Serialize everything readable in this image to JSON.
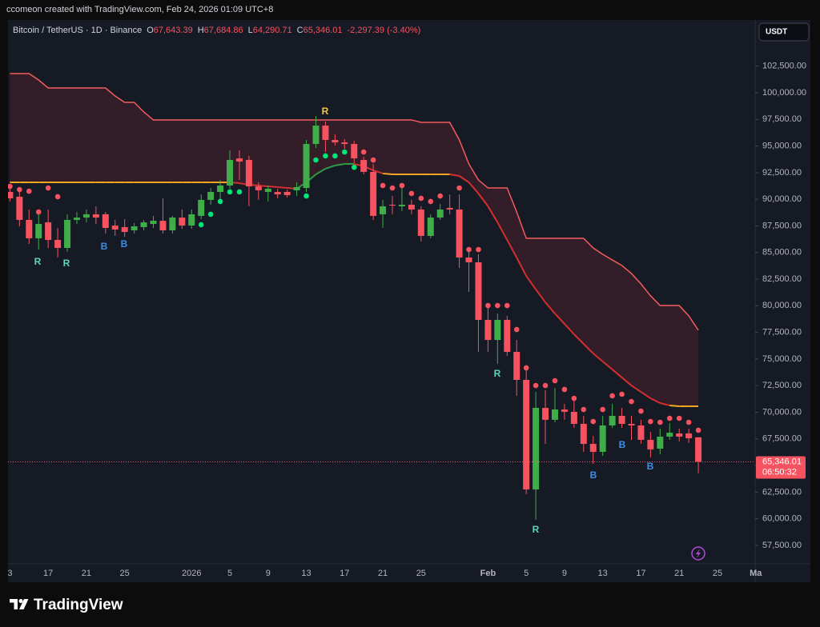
{
  "header": {
    "credit": "ccomeon created with TradingView.com, Feb 24, 2026 01:09 UTC+8",
    "symbol": "Bitcoin / TetherUS · 1D · Binance",
    "ohlc": [
      {
        "label": "O",
        "value": "67,643.39"
      },
      {
        "label": "H",
        "value": "67,684.86"
      },
      {
        "label": "L",
        "value": "64,290.71"
      },
      {
        "label": "C",
        "value": "65,346.01"
      }
    ],
    "change": "-2,297.39 (-3.40%)",
    "currency": "USDT",
    "last_price_label": "65,346.01",
    "countdown": "06:50:32",
    "brand": "TradingView"
  },
  "chart_data": {
    "type": "candlestick",
    "up_color": "#3fae49",
    "down_color": "#f7525f",
    "categories": [
      "3",
      null,
      null,
      null,
      "17",
      null,
      null,
      null,
      "21",
      null,
      null,
      null,
      "25",
      null,
      null,
      null,
      null,
      null,
      null,
      "2026",
      null,
      null,
      null,
      "5",
      null,
      null,
      null,
      "9",
      null,
      null,
      null,
      "13",
      null,
      null,
      null,
      "17",
      null,
      null,
      null,
      "21",
      null,
      null,
      null,
      "25",
      null,
      null,
      null,
      null,
      null,
      null,
      "Feb",
      null,
      null,
      null,
      "5",
      null,
      null,
      null,
      "9",
      null,
      null,
      null,
      "13",
      null,
      null,
      null,
      "17",
      null,
      null,
      null,
      "21",
      null,
      null,
      null,
      "25",
      null,
      null,
      null,
      "Ma"
    ],
    "open": [
      90690,
      90240,
      88060,
      86330,
      87830,
      86180,
      85430,
      88060,
      88280,
      88590,
      88590,
      87530,
      87380,
      87080,
      87380,
      87680,
      87980,
      87080,
      88280,
      87530,
      88440,
      89940,
      90690,
      91290,
      93840,
      93690,
      91210,
      90690,
      90690,
      90690,
      90840,
      91060,
      95190,
      96920,
      95570,
      95340,
      95190,
      93690,
      92570,
      88590,
      89490,
      89340,
      89490,
      89040,
      86560,
      88280,
      89190,
      89040,
      84530,
      84080,
      78670,
      76790,
      78670,
      75670,
      73040,
      62750,
      70410,
      69290,
      70260,
      70040,
      68910,
      67030,
      66280,
      68760,
      69660,
      68910,
      68760,
      67410,
      66580,
      67710,
      68010,
      68010,
      67643.39,
      null,
      null,
      null,
      null,
      null,
      null
    ],
    "high": [
      91060,
      90690,
      89040,
      88590,
      89040,
      87310,
      88590,
      88810,
      89040,
      89340,
      88810,
      88060,
      88130,
      87760,
      88060,
      88440,
      90090,
      88440,
      89040,
      89040,
      90460,
      91060,
      91810,
      94590,
      94590,
      94070,
      91590,
      91290,
      90990,
      90910,
      91590,
      95570,
      97820,
      97300,
      96100,
      95640,
      95490,
      93990,
      93320,
      89940,
      90310,
      91060,
      89940,
      89340,
      88590,
      89560,
      90460,
      90460,
      85060,
      84830,
      80020,
      79270,
      79050,
      76790,
      74020,
      71910,
      72060,
      72290,
      70790,
      71160,
      69660,
      67780,
      69660,
      70790,
      70410,
      69660,
      69290,
      68160,
      68460,
      68990,
      68460,
      68460,
      67684.86,
      null,
      null,
      null,
      null,
      null,
      null
    ],
    "low": [
      89790,
      87460,
      85810,
      85280,
      85430,
      84530,
      85060,
      87680,
      87830,
      87680,
      86780,
      86560,
      86480,
      86780,
      87080,
      87310,
      86780,
      86780,
      87230,
      87230,
      88130,
      89490,
      89940,
      90990,
      91810,
      89340,
      89940,
      89790,
      90090,
      90160,
      90310,
      90690,
      94820,
      94440,
      95040,
      94740,
      93390,
      92340,
      88060,
      87310,
      88590,
      88890,
      88590,
      86030,
      86330,
      88060,
      88590,
      83550,
      81300,
      75670,
      75670,
      74540,
      75290,
      71540,
      62300,
      59900,
      67030,
      69060,
      69290,
      68530,
      66280,
      65150,
      65900,
      68530,
      68530,
      67410,
      67030,
      65750,
      66060,
      67410,
      67260,
      67110,
      64290.71,
      null,
      null,
      null,
      null,
      null,
      null
    ],
    "close": [
      90090,
      88060,
      86330,
      87680,
      86180,
      85430,
      88060,
      88280,
      88590,
      88280,
      87310,
      87160,
      86930,
      87460,
      87830,
      87980,
      87080,
      88280,
      87530,
      88590,
      89940,
      90690,
      91290,
      93690,
      93540,
      91210,
      90840,
      90990,
      90460,
      90390,
      91140,
      95190,
      96920,
      95570,
      95340,
      95190,
      93840,
      92570,
      88440,
      89340,
      89410,
      89490,
      89040,
      86560,
      88280,
      89040,
      89040,
      84530,
      84080,
      78670,
      76790,
      78670,
      75670,
      73040,
      62750,
      70410,
      69290,
      70260,
      70040,
      68910,
      67030,
      66280,
      68760,
      69660,
      68910,
      68760,
      67410,
      66510,
      67710,
      68080,
      67710,
      67560,
      65346.01,
      null,
      null,
      null,
      null,
      null,
      null
    ],
    "ylim": [
      56000,
      106500
    ],
    "yticks": [
      {
        "value": 57500,
        "label": "57,500.00"
      },
      {
        "value": 60000,
        "label": "60,000.00"
      },
      {
        "value": 62500,
        "label": "62,500.00"
      },
      {
        "value": 65000,
        "label": "65,000.00"
      },
      {
        "value": 67500,
        "label": "67,500.00"
      },
      {
        "value": 70000,
        "label": "70,000.00"
      },
      {
        "value": 72500,
        "label": "72,500.00"
      },
      {
        "value": 75000,
        "label": "75,000.00"
      },
      {
        "value": 77500,
        "label": "77,500.00"
      },
      {
        "value": 80000,
        "label": "80,000.00"
      },
      {
        "value": 82500,
        "label": "82,500.00"
      },
      {
        "value": 85000,
        "label": "85,000.00"
      },
      {
        "value": 87500,
        "label": "87,500.00"
      },
      {
        "value": 90000,
        "label": "90,000.00"
      },
      {
        "value": 92500,
        "label": "92,500.00"
      },
      {
        "value": 95000,
        "label": "95,000.00"
      },
      {
        "value": 97500,
        "label": "97,500.00"
      },
      {
        "value": 100000,
        "label": "100,000.00"
      },
      {
        "value": 102500,
        "label": "102,500.00"
      }
    ],
    "grid": false,
    "band_upper": {
      "color": "#f25c5c",
      "values": [
        101800,
        101800,
        101800,
        101200,
        100450,
        100450,
        100450,
        100450,
        100450,
        100450,
        100450,
        99700,
        99100,
        99100,
        98200,
        97450,
        97450,
        97450,
        97450,
        97450,
        97450,
        97450,
        97450,
        97450,
        97450,
        97450,
        97450,
        97450,
        97450,
        97450,
        97450,
        97450,
        97450,
        97450,
        97450,
        97450,
        97450,
        97450,
        97450,
        97450,
        97450,
        97450,
        97450,
        97220,
        97220,
        97220,
        97220,
        95570,
        93320,
        91810,
        91060,
        91060,
        91060,
        88810,
        86330,
        86330,
        86330,
        86330,
        86330,
        86330,
        86330,
        85430,
        84830,
        84300,
        83780,
        83030,
        82050,
        80930,
        80020,
        80020,
        80020,
        79050,
        77700,
        null,
        null,
        null,
        null,
        null,
        null
      ]
    },
    "midline": {
      "values": [
        91590,
        91590,
        91590,
        91590,
        91590,
        91590,
        91590,
        91590,
        91590,
        91590,
        91590,
        91590,
        91590,
        91590,
        91590,
        91590,
        91590,
        91590,
        91590,
        91590,
        91590,
        91590,
        91590,
        91590,
        91510,
        91360,
        91290,
        91210,
        91140,
        91060,
        90990,
        91590,
        92340,
        92870,
        93170,
        93320,
        93320,
        93090,
        92720,
        92420,
        92340,
        92340,
        92340,
        92340,
        92340,
        92340,
        92340,
        92190,
        91590,
        90540,
        89340,
        87830,
        86180,
        84530,
        82800,
        81530,
        80320,
        79270,
        78300,
        77320,
        76420,
        75520,
        74770,
        74020,
        73260,
        72510,
        71910,
        71310,
        70860,
        70640,
        70560,
        70560,
        70560,
        null,
        null,
        null,
        null,
        null,
        null
      ],
      "colors": [
        "#f5a623",
        "#f5a623",
        "#f5a623",
        "#f5a623",
        "#f5a623",
        "#f5a623",
        "#f5a623",
        "#f5a623",
        "#f5a623",
        "#f5a623",
        "#f5a623",
        "#f5a623",
        "#f5a623",
        "#f5a623",
        "#f5a623",
        "#f5a623",
        "#f5a623",
        "#f5a623",
        "#f5a623",
        "#f5a623",
        "#f5a623",
        "#f5a623",
        "#f5a623",
        "#f5a623",
        "#d32f2f",
        "#d32f2f",
        "#d32f2f",
        "#d32f2f",
        "#d32f2f",
        "#d32f2f",
        "#d32f2f",
        "#2e9d46",
        "#2e9d46",
        "#2e9d46",
        "#2e9d46",
        "#2e9d46",
        "#2e9d46",
        "#d32f2f",
        "#d32f2f",
        "#d32f2f",
        "#f5a623",
        "#f5a623",
        "#f5a623",
        "#f5a623",
        "#f5a623",
        "#f5a623",
        "#f5a623",
        "#d32f2f",
        "#d32f2f",
        "#d32f2f",
        "#d32f2f",
        "#d32f2f",
        "#d32f2f",
        "#d32f2f",
        "#d32f2f",
        "#d32f2f",
        "#d32f2f",
        "#d32f2f",
        "#d32f2f",
        "#d32f2f",
        "#d32f2f",
        "#d32f2f",
        "#d32f2f",
        "#d32f2f",
        "#d32f2f",
        "#d32f2f",
        "#d32f2f",
        "#d32f2f",
        "#d32f2f",
        "#d32f2f",
        "#f5a623",
        "#f5a623",
        "#f5a623",
        null,
        null,
        null,
        null,
        null,
        null
      ]
    },
    "dots_down": {
      "color": "#f7525f",
      "values": [
        91210,
        90910,
        90760,
        88810,
        91060,
        90240,
        null,
        null,
        null,
        null,
        null,
        null,
        null,
        null,
        null,
        null,
        null,
        null,
        null,
        null,
        null,
        null,
        null,
        null,
        null,
        null,
        null,
        null,
        null,
        null,
        null,
        null,
        null,
        null,
        null,
        null,
        null,
        94440,
        93690,
        91290,
        91060,
        91290,
        90540,
        90090,
        89790,
        90310,
        null,
        91060,
        85280,
        85280,
        80020,
        80020,
        80020,
        77770,
        74170,
        72510,
        72510,
        72960,
        72140,
        71310,
        70260,
        69130,
        70260,
        71540,
        71690,
        71010,
        70110,
        69130,
        69060,
        69430,
        69430,
        69060,
        68310,
        null,
        null,
        null,
        null,
        null,
        null
      ]
    },
    "dots_up": {
      "color": "#00e676",
      "values": [
        null,
        null,
        null,
        null,
        null,
        null,
        null,
        null,
        null,
        null,
        null,
        null,
        null,
        null,
        null,
        null,
        null,
        null,
        null,
        null,
        87610,
        88590,
        89790,
        90690,
        90690,
        null,
        null,
        null,
        null,
        null,
        null,
        90310,
        93690,
        94070,
        94070,
        94440,
        93000,
        null,
        null,
        null,
        null,
        null,
        null,
        null,
        null,
        null,
        null,
        null,
        null,
        null,
        null,
        null,
        null,
        null,
        null,
        null,
        null,
        null,
        null,
        null,
        null,
        null,
        null,
        null,
        null,
        null,
        null,
        null,
        null,
        null,
        null,
        null,
        null,
        null,
        null,
        null,
        null,
        null,
        null
      ]
    },
    "annotations": [
      {
        "text": "R",
        "color": "#5fd3bc"
      },
      {
        "text": "R",
        "color": "#5fd3bc"
      },
      {
        "text": "B",
        "color": "#3d8ee8"
      },
      {
        "text": "B",
        "color": "#3d8ee8"
      },
      {
        "text": "R",
        "color": "#f0c94a"
      },
      {
        "text": "R",
        "color": "#5fd3bc"
      },
      {
        "text": "R",
        "color": "#5fd3bc"
      },
      {
        "text": "B",
        "color": "#3d8ee8"
      },
      {
        "text": "B",
        "color": "#3d8ee8"
      },
      {
        "text": "B",
        "color": "#3d8ee8"
      }
    ]
  }
}
